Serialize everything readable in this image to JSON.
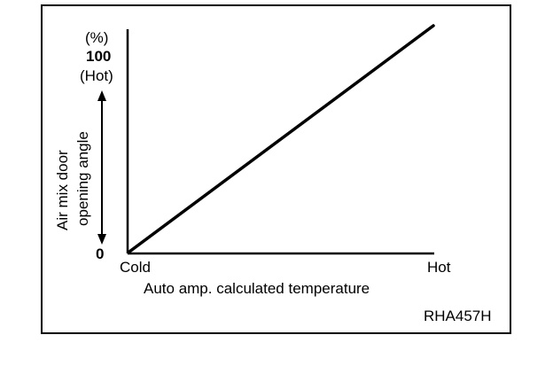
{
  "chart_data": {
    "type": "line",
    "xlabel": "Auto amp. calculated temperature",
    "ylabel": [
      "Air mix door",
      "opening angle"
    ],
    "y_unit": "(%)",
    "x_ticks": [
      "Cold",
      "Hot"
    ],
    "y_ticks": [
      {
        "value": 0,
        "label": "0"
      },
      {
        "value": 100,
        "label": "100",
        "sublabel": "(Hot)"
      }
    ],
    "xlim": [
      0,
      1
    ],
    "ylim": [
      0,
      100
    ],
    "series": [
      {
        "x": [
          0,
          1
        ],
        "y": [
          0,
          100
        ]
      }
    ],
    "grid": false,
    "code": "RHA457H"
  },
  "colors": {
    "line": "#000000",
    "background": "#ffffff"
  }
}
